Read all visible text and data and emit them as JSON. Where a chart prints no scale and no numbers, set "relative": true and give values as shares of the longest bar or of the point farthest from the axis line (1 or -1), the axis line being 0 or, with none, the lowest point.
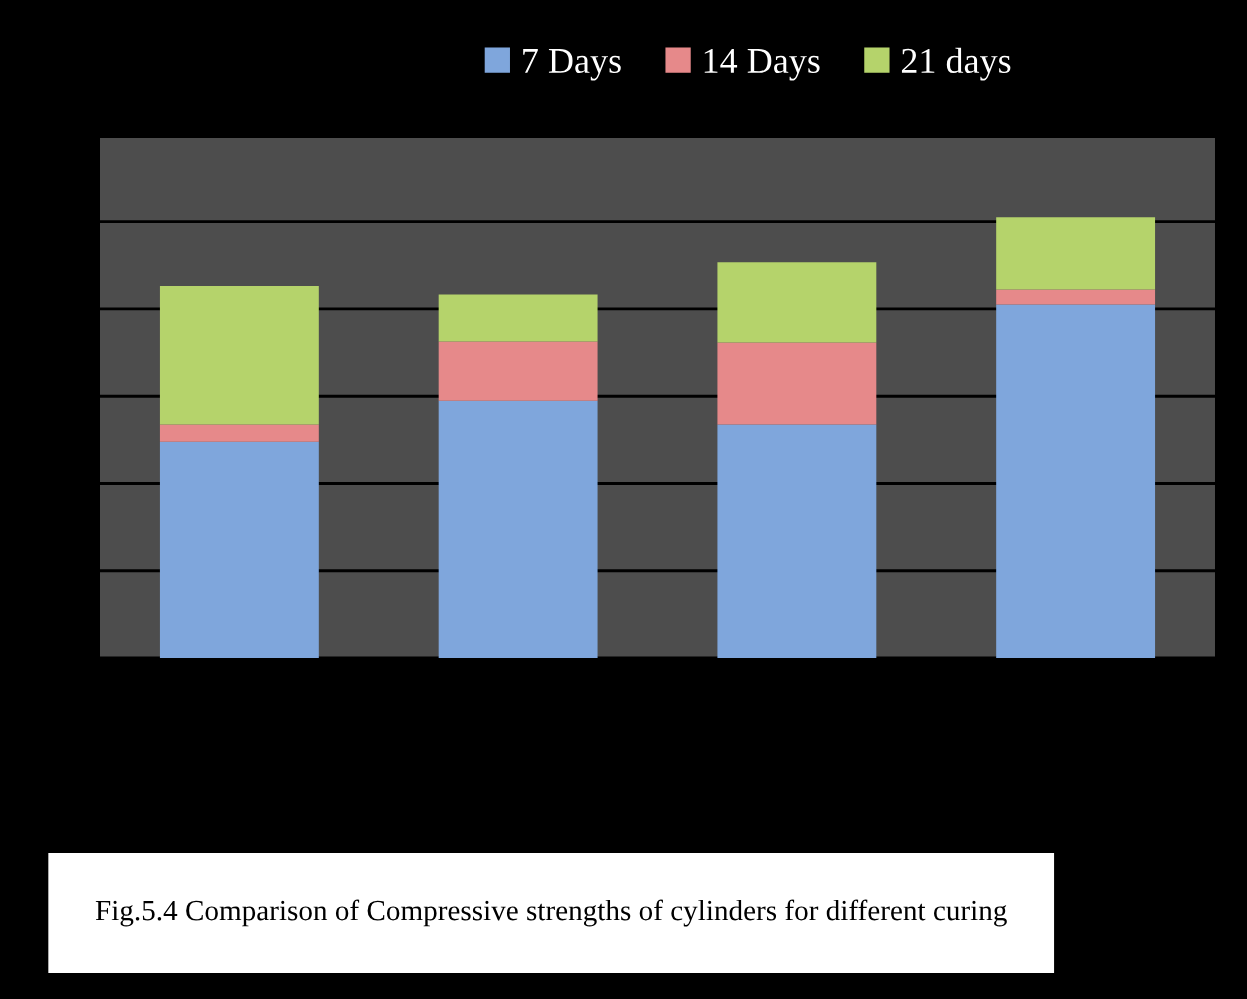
{
  "chart_data": {
    "type": "bar",
    "stacked": true,
    "relative": true,
    "categories": [
      null,
      null,
      null,
      null
    ],
    "series": [
      {
        "name": "7 Days",
        "color": "#7fa6dc",
        "values": [
          0.491,
          0.584,
          0.53,
          0.802
        ]
      },
      {
        "name": "14 Days",
        "color": "#e6898a",
        "values": [
          0.039,
          0.134,
          0.186,
          0.034
        ]
      },
      {
        "name": "21 days",
        "color": "#b5d36b",
        "values": [
          0.314,
          0.107,
          0.182,
          0.164
        ]
      }
    ],
    "legend": "top",
    "grid": "y",
    "annotations": [
      "Fig.5.4 Comparison of Compressive strengths of cylinders for different curing"
    ]
  }
}
